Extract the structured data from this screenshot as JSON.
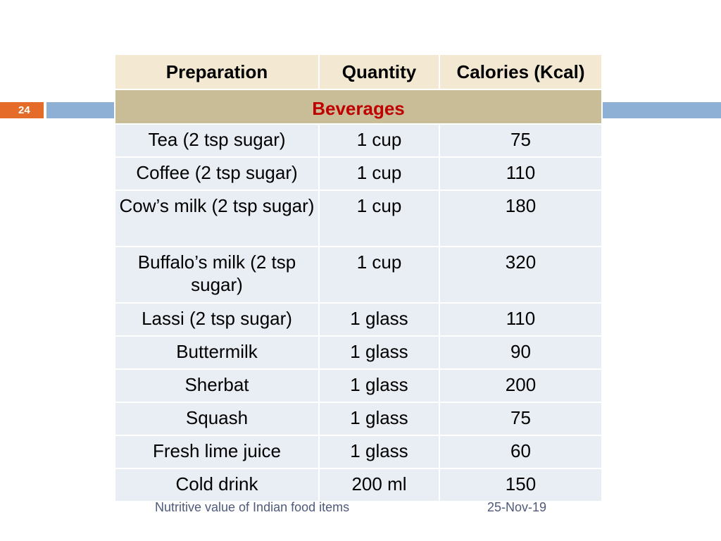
{
  "slide": {
    "number": "24"
  },
  "table": {
    "headers": [
      "Preparation",
      "Quantity",
      "Calories (Kcal)"
    ],
    "section_title": "Beverages",
    "rows": [
      {
        "preparation": "Tea (2 tsp sugar)",
        "quantity": "1 cup",
        "calories": "75"
      },
      {
        "preparation": "Coffee (2 tsp sugar)",
        "quantity": "1 cup",
        "calories": "110"
      },
      {
        "preparation": "Cow’s milk (2 tsp sugar)",
        "quantity": "1 cup",
        "calories": "180"
      },
      {
        "preparation": "Buffalo’s milk (2 tsp sugar)",
        "quantity": "1 cup",
        "calories": "320"
      },
      {
        "preparation": "Lassi (2 tsp sugar)",
        "quantity": "1 glass",
        "calories": "110"
      },
      {
        "preparation": "Buttermilk",
        "quantity": "1 glass",
        "calories": "90"
      },
      {
        "preparation": "Sherbat",
        "quantity": "1 glass",
        "calories": "200"
      },
      {
        "preparation": "Squash",
        "quantity": "1 glass",
        "calories": "75"
      },
      {
        "preparation": "Fresh lime juice",
        "quantity": "1 glass",
        "calories": "60"
      },
      {
        "preparation": "Cold drink",
        "quantity": "200 ml",
        "calories": "150"
      }
    ]
  },
  "footer": {
    "title": "Nutritive value of Indian food items",
    "date": "25-Nov-19"
  },
  "colors": {
    "accent_bar": "#8eb0d4",
    "slide_number_bg": "#e46c28",
    "header_bg": "#f3e9d2",
    "section_bg": "#c9bd97",
    "section_text": "#c00000",
    "row_bg": "#e9edf4"
  }
}
